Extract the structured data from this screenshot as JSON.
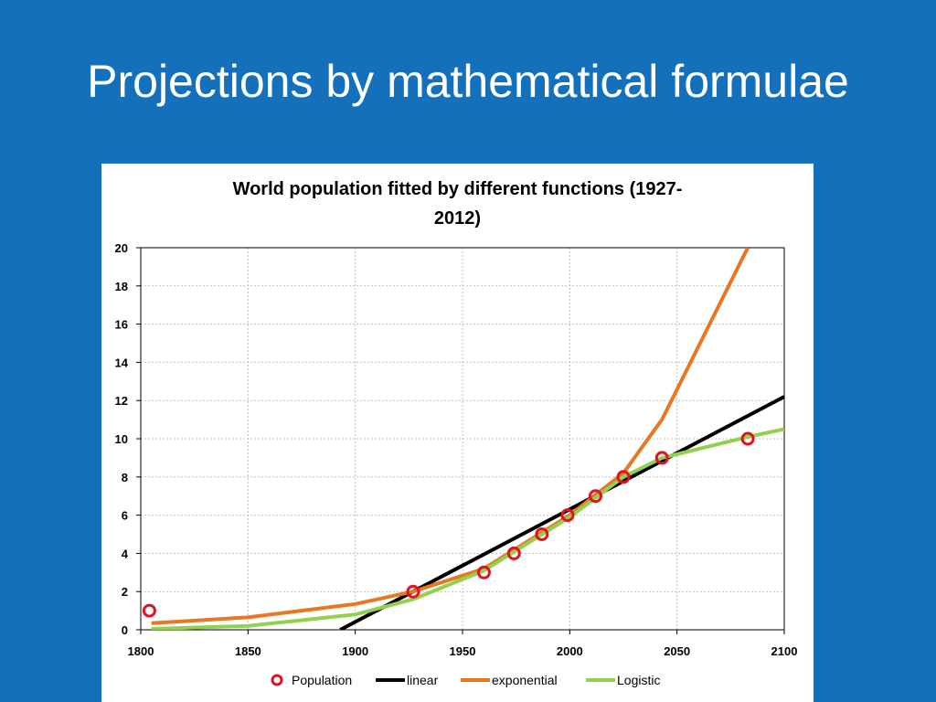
{
  "slide": {
    "title": "Projections by mathematical formulae",
    "background": "#1470bb"
  },
  "chart_data": {
    "type": "line",
    "title_lines": [
      "World population fitted by different functions  (1927-",
      "2012)"
    ],
    "xlim": [
      1800,
      2100
    ],
    "ylim": [
      0,
      20
    ],
    "xticks": [
      1800,
      1850,
      1900,
      1950,
      2000,
      2050,
      2100
    ],
    "yticks": [
      0,
      2,
      4,
      6,
      8,
      10,
      12,
      14,
      16,
      18,
      20
    ],
    "grid": true,
    "legend_position": "bottom",
    "series": [
      {
        "name": "Population",
        "kind": "marker",
        "color": "#e0141e",
        "x": [
          1804,
          1927,
          1960,
          1974,
          1987,
          1999,
          2012,
          2025,
          2043,
          2083
        ],
        "y": [
          1,
          2,
          3,
          4,
          5,
          6,
          7,
          8,
          9,
          10
        ]
      },
      {
        "name": "linear",
        "kind": "line",
        "color": "#000000",
        "x": [
          1893,
          2100
        ],
        "y": [
          0,
          12.2
        ]
      },
      {
        "name": "exponential",
        "kind": "line",
        "color": "#e87722",
        "x": [
          1805,
          1850,
          1900,
          1927,
          1960,
          2000,
          2025,
          2043,
          2083
        ],
        "y": [
          0.35,
          0.65,
          1.35,
          2,
          3.2,
          6,
          8.2,
          11,
          20
        ]
      },
      {
        "name": "Logistic",
        "kind": "line",
        "color": "#92d050",
        "x": [
          1805,
          1850,
          1900,
          1927,
          1960,
          2000,
          2025,
          2043,
          2083,
          2100
        ],
        "y": [
          0.05,
          0.2,
          0.8,
          1.6,
          3.1,
          5.9,
          8,
          9,
          10.1,
          10.5
        ]
      }
    ]
  }
}
